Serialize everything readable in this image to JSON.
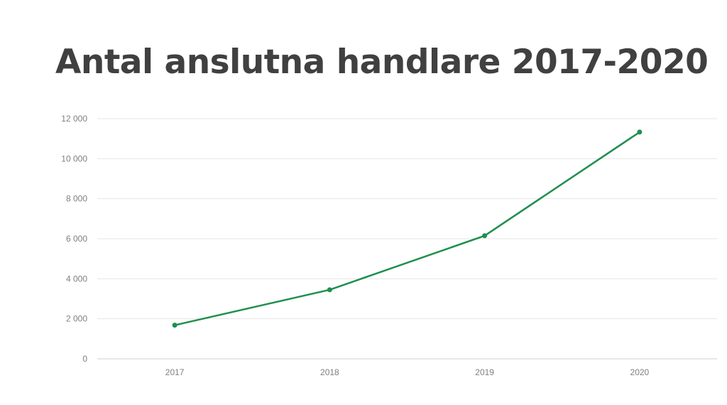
{
  "chart_data": {
    "type": "line",
    "title": "Antal anslutna handlare 2017-2020",
    "categories": [
      "2017",
      "2018",
      "2019",
      "2020"
    ],
    "series": [
      {
        "values": [
          1680,
          3450,
          6150,
          11330
        ]
      }
    ],
    "ylim": [
      0,
      12000
    ],
    "yticks": [
      0,
      2000,
      4000,
      6000,
      8000,
      10000,
      12000
    ],
    "ytick_labels": [
      "0",
      "2 000",
      "4 000",
      "6 000",
      "8 000",
      "10 000",
      "12 000"
    ],
    "grid": true,
    "legend": "none",
    "line_color": "#1e8f4e",
    "grid_color": "#e4e4e4",
    "axis_color": "#d0d0d0"
  }
}
